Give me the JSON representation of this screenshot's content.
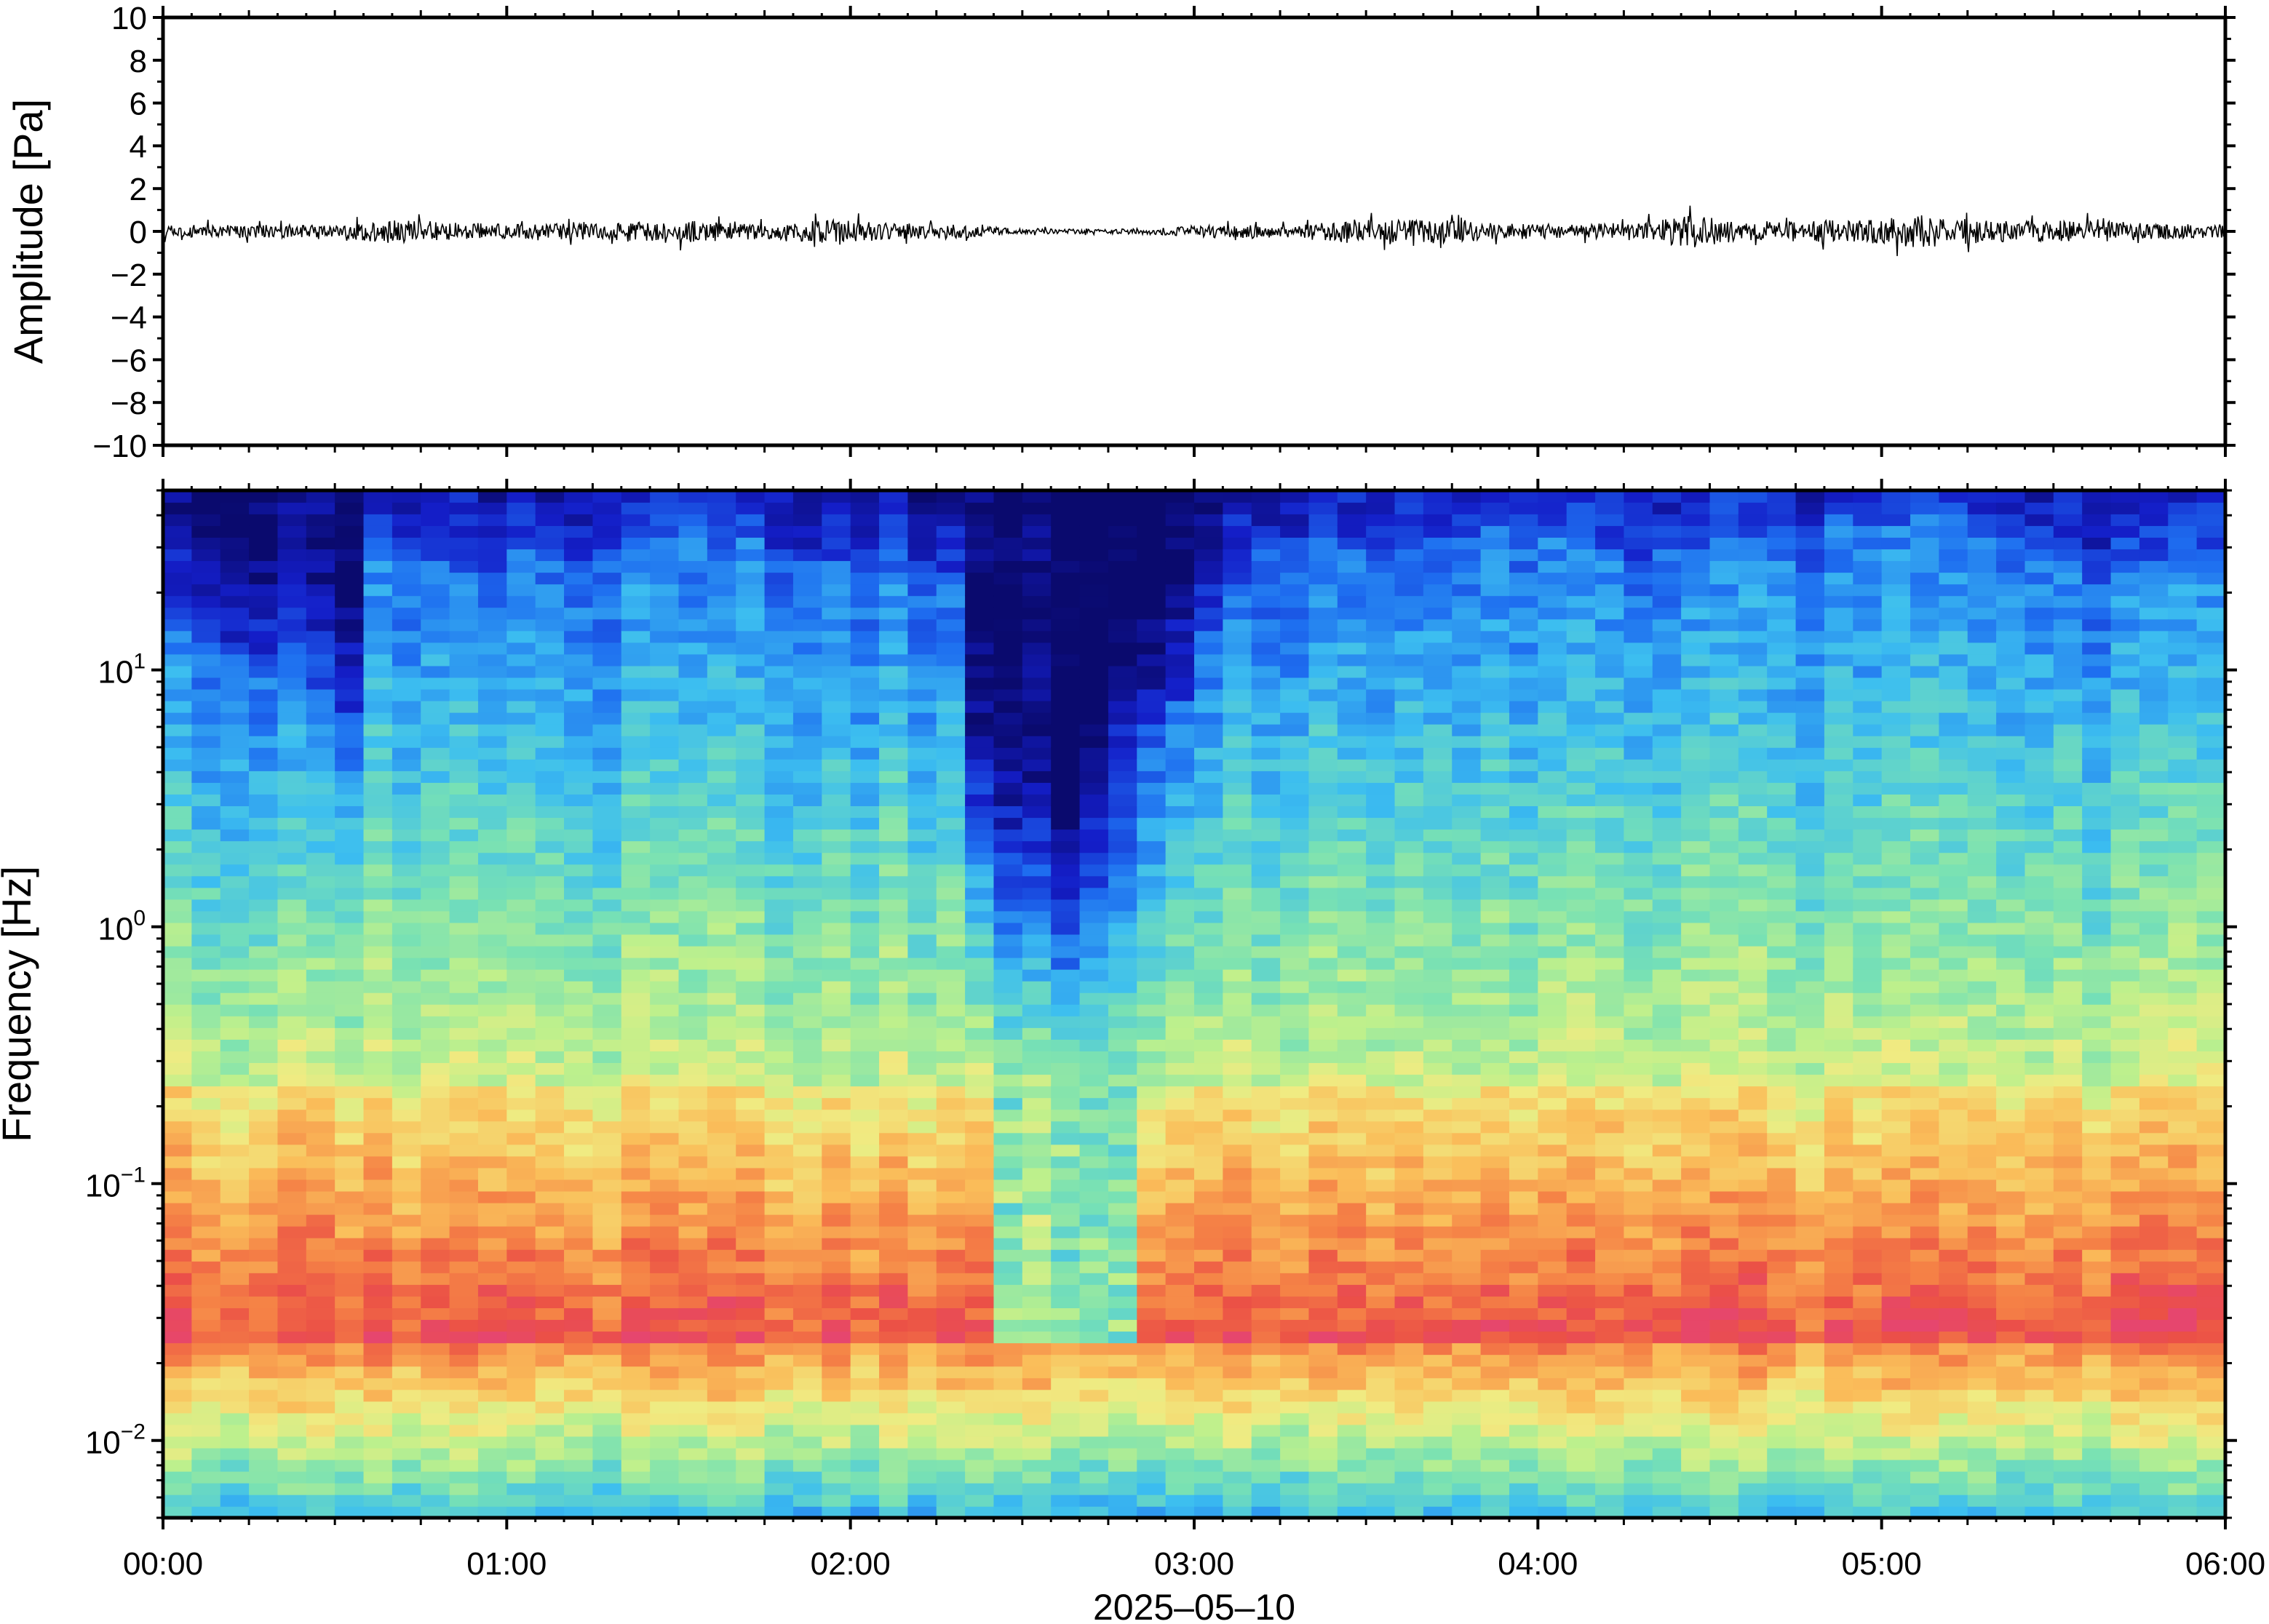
{
  "chart_data": [
    {
      "type": "line",
      "ylabel": "Amplitude [Pa]",
      "ylim": [
        -10,
        10
      ],
      "y_ticks": [
        10,
        8,
        6,
        4,
        2,
        0,
        -2,
        -4,
        -6,
        -8,
        -10
      ],
      "y_tick_labels": [
        "10",
        "8",
        "6",
        "4",
        "2",
        "0",
        "−2",
        "−4",
        "−6",
        "−8",
        "−10"
      ],
      "xlim": [
        "00:00",
        "06:00"
      ],
      "series": [
        {
          "x_hours": [
            0.0,
            0.25,
            0.5,
            0.65,
            0.75,
            1.0,
            1.25,
            1.5,
            1.6,
            1.75,
            1.95,
            2.1,
            2.3,
            2.45,
            2.6,
            2.75,
            2.9,
            3.1,
            3.3,
            3.45,
            3.7,
            3.9,
            4.1,
            4.3,
            4.45,
            4.6,
            4.85,
            5.0,
            5.15,
            5.3,
            5.6,
            5.8,
            6.0
          ],
          "envelope_pa": [
            0.5,
            0.6,
            0.5,
            1.0,
            0.9,
            0.6,
            0.7,
            0.9,
            0.9,
            0.6,
            1.1,
            0.7,
            0.6,
            0.3,
            0.2,
            0.2,
            0.3,
            0.6,
            0.5,
            1.0,
            1.0,
            0.7,
            0.6,
            0.8,
            1.4,
            0.8,
            1.0,
            1.1,
            1.5,
            0.9,
            0.9,
            0.7,
            0.6
          ]
        }
      ],
      "color": "#000000"
    },
    {
      "type": "heatmap",
      "ylabel": "Frequency [Hz]",
      "y_scale": "log",
      "ylim_hz": [
        0.005,
        50
      ],
      "y_ticks_hz": [
        10,
        1,
        0.1,
        0.01
      ],
      "y_tick_labels": [
        {
          "base": "10",
          "exp": "1"
        },
        {
          "base": "10",
          "exp": "0"
        },
        {
          "base": "10",
          "exp": "−1"
        },
        {
          "base": "10",
          "exp": "−2"
        }
      ],
      "xlabel": "2025–05–10",
      "xlim_hours": [
        0,
        6
      ],
      "x_ticks_hours": [
        0,
        1,
        2,
        3,
        4,
        5,
        6
      ],
      "x_tick_labels": [
        "00:00",
        "01:00",
        "02:00",
        "03:00",
        "04:00",
        "05:00",
        "06:00"
      ],
      "colormap": "jet",
      "columns_per_hour": 12,
      "upper_band_edge_hz": [
        14,
        13,
        12,
        10,
        9,
        8,
        7,
        28,
        30,
        26,
        24,
        22,
        30,
        28,
        26,
        30,
        32,
        34,
        36,
        26,
        34,
        30,
        30,
        28,
        26,
        25,
        24,
        22,
        2.5,
        1.8,
        1.5,
        1.2,
        2.0,
        4.5,
        6,
        8,
        14,
        22,
        30,
        32,
        34,
        30,
        28,
        30,
        32,
        34,
        35,
        32,
        34,
        32,
        30,
        28,
        30,
        30,
        32,
        34,
        38,
        36,
        40,
        36,
        38,
        40,
        42,
        36,
        34,
        30,
        28,
        26,
        24,
        26,
        28,
        30
      ],
      "quiet_interval_hours": [
        2.45,
        2.8
      ]
    }
  ]
}
